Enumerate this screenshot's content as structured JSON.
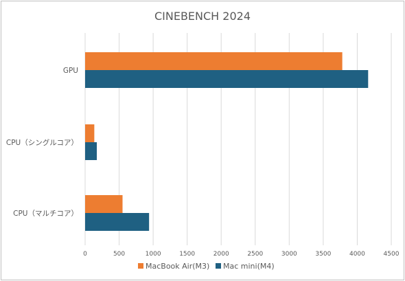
{
  "chart_data": {
    "type": "bar",
    "orientation": "horizontal",
    "title": "CINEBENCH 2024",
    "categories": [
      "GPU",
      "CPU（シングルコア）",
      "CPU（マルチコア）"
    ],
    "series": [
      {
        "name": "MacBook Air(M3)",
        "color": "#ed7d31",
        "values": [
          3780,
          135,
          550
        ]
      },
      {
        "name": "Mac mini(M4)",
        "color": "#1f6082",
        "values": [
          4160,
          172,
          940
        ]
      }
    ],
    "xlim": [
      0,
      4500
    ],
    "x_ticks": [
      0,
      500,
      1000,
      1500,
      2000,
      2500,
      3000,
      3500,
      4000,
      4500
    ],
    "grid": true,
    "legend_position": "bottom"
  }
}
